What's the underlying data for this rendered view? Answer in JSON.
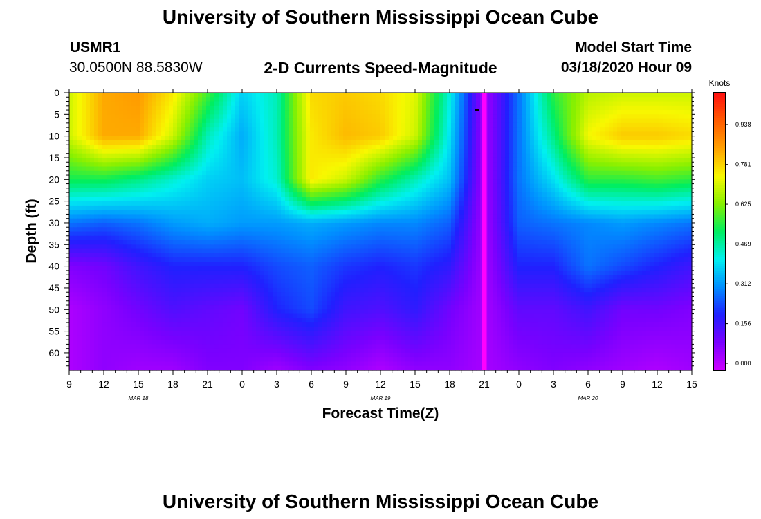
{
  "title_top": "University of Southern Mississippi Ocean Cube",
  "title_bottom": "University of Southern Mississippi Ocean Cube",
  "station": {
    "id": "USMR1",
    "coords": "30.0500N 88.5830W"
  },
  "model_start": {
    "label": "Model Start Time",
    "value": "03/18/2020 Hour 09"
  },
  "chart_data": {
    "type": "heatmap",
    "title": "2-D Currents Speed-Magnitude",
    "xlabel": "Forecast Time(Z)",
    "ylabel": "Depth (ft)",
    "x_ticks": [
      "9",
      "12",
      "15",
      "18",
      "21",
      "0",
      "3",
      "6",
      "9",
      "12",
      "15",
      "18",
      "21",
      "0",
      "3",
      "6",
      "9",
      "12",
      "15"
    ],
    "date_labels": [
      {
        "label": "MAR 18",
        "at_tick": 2
      },
      {
        "label": "MAR 19",
        "at_tick": 9
      },
      {
        "label": "MAR 20",
        "at_tick": 15
      }
    ],
    "y_ticks": [
      "0",
      "5",
      "10",
      "15",
      "20",
      "25",
      "30",
      "35",
      "40",
      "45",
      "50",
      "55",
      "60"
    ],
    "ylim": [
      0,
      64
    ],
    "colorbar": {
      "title": "Knots",
      "ticks": [
        "0.000",
        "0.156",
        "0.312",
        "0.469",
        "0.625",
        "0.781",
        "0.938"
      ],
      "range": [
        0.0,
        1.09
      ]
    },
    "speed_field_knots": {
      "depth_ft": [
        0,
        10,
        20,
        30,
        40,
        50,
        64
      ],
      "hours_from_start": [
        0,
        3,
        6,
        9,
        12,
        15,
        18,
        21,
        24,
        27,
        30,
        33,
        36,
        39,
        42,
        45,
        48,
        51,
        54
      ],
      "rows": [
        [
          0.72,
          0.86,
          0.88,
          0.78,
          0.6,
          0.4,
          0.48,
          0.8,
          0.82,
          0.8,
          0.74,
          0.45,
          0.05,
          0.3,
          0.58,
          0.7,
          0.72,
          0.72,
          0.72
        ],
        [
          0.72,
          0.86,
          0.86,
          0.72,
          0.48,
          0.36,
          0.48,
          0.78,
          0.84,
          0.82,
          0.72,
          0.42,
          0.05,
          0.3,
          0.52,
          0.76,
          0.82,
          0.82,
          0.8
        ],
        [
          0.56,
          0.56,
          0.52,
          0.46,
          0.4,
          0.38,
          0.46,
          0.78,
          0.72,
          0.58,
          0.48,
          0.38,
          0.05,
          0.3,
          0.42,
          0.58,
          0.58,
          0.6,
          0.58
        ],
        [
          0.3,
          0.28,
          0.3,
          0.34,
          0.36,
          0.34,
          0.34,
          0.36,
          0.34,
          0.32,
          0.32,
          0.28,
          0.05,
          0.28,
          0.3,
          0.32,
          0.34,
          0.32,
          0.3
        ],
        [
          0.1,
          0.12,
          0.18,
          0.22,
          0.22,
          0.22,
          0.26,
          0.28,
          0.24,
          0.22,
          0.24,
          0.2,
          0.05,
          0.22,
          0.22,
          0.3,
          0.26,
          0.22,
          0.18
        ],
        [
          0.04,
          0.08,
          0.12,
          0.16,
          0.14,
          0.12,
          0.22,
          0.26,
          0.18,
          0.16,
          0.2,
          0.12,
          0.05,
          0.14,
          0.14,
          0.18,
          0.12,
          0.12,
          0.1
        ],
        [
          0.04,
          0.08,
          0.06,
          0.06,
          0.1,
          0.1,
          0.06,
          0.1,
          0.08,
          0.04,
          0.08,
          0.08,
          0.05,
          0.08,
          0.1,
          0.08,
          0.06,
          0.04,
          0.06
        ]
      ]
    }
  },
  "colors": {
    "colormap": [
      "#cc00ff",
      "#7a00ff",
      "#2020ff",
      "#0090ff",
      "#00f0f0",
      "#00ee60",
      "#88f000",
      "#f8f800",
      "#ffa000",
      "#ff5a00",
      "#ff1010"
    ],
    "background": "#ffffff"
  }
}
